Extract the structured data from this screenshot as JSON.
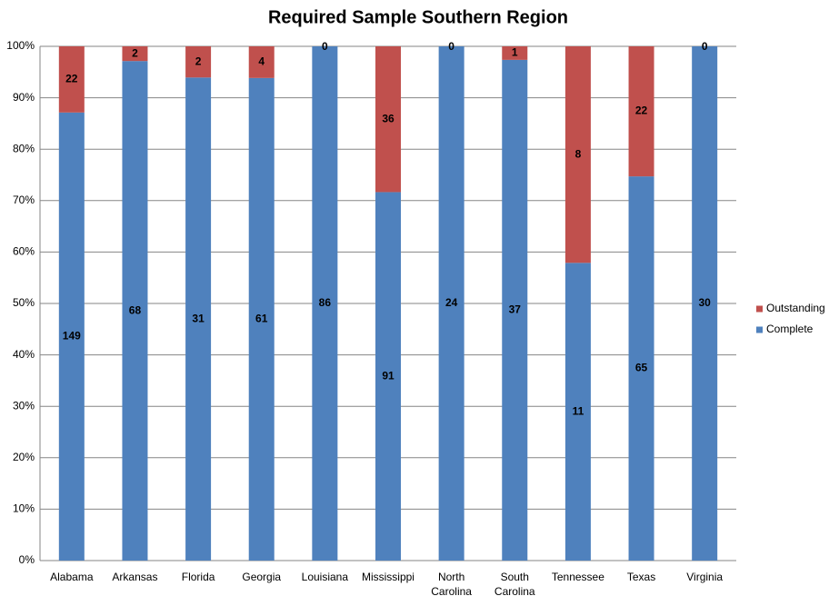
{
  "chart_data": {
    "type": "bar",
    "stacking": "percent",
    "title": "Required Sample Southern Region",
    "categories": [
      "Alabama",
      "Arkansas",
      "Florida",
      "Georgia",
      "Louisiana",
      "Mississippi",
      "North Carolina",
      "South Carolina",
      "Tennessee",
      "Texas",
      "Virginia"
    ],
    "series": [
      {
        "name": "Complete",
        "color": "#4f81bd",
        "values": [
          149,
          68,
          31,
          61,
          86,
          91,
          24,
          37,
          11,
          65,
          30
        ]
      },
      {
        "name": "Outstanding",
        "color": "#c0504d",
        "values": [
          22,
          2,
          2,
          4,
          0,
          36,
          0,
          1,
          8,
          22,
          0
        ]
      }
    ],
    "ylim": [
      0,
      100
    ],
    "yticks": [
      {
        "value": 0,
        "label": "0%"
      },
      {
        "value": 10,
        "label": "10%"
      },
      {
        "value": 20,
        "label": "20%"
      },
      {
        "value": 30,
        "label": "30%"
      },
      {
        "value": 40,
        "label": "40%"
      },
      {
        "value": 50,
        "label": "50%"
      },
      {
        "value": 60,
        "label": "60%"
      },
      {
        "value": 70,
        "label": "70%"
      },
      {
        "value": 80,
        "label": "80%"
      },
      {
        "value": 90,
        "label": "90%"
      },
      {
        "value": 100,
        "label": "100%"
      }
    ],
    "grid": true,
    "legend": "right"
  }
}
